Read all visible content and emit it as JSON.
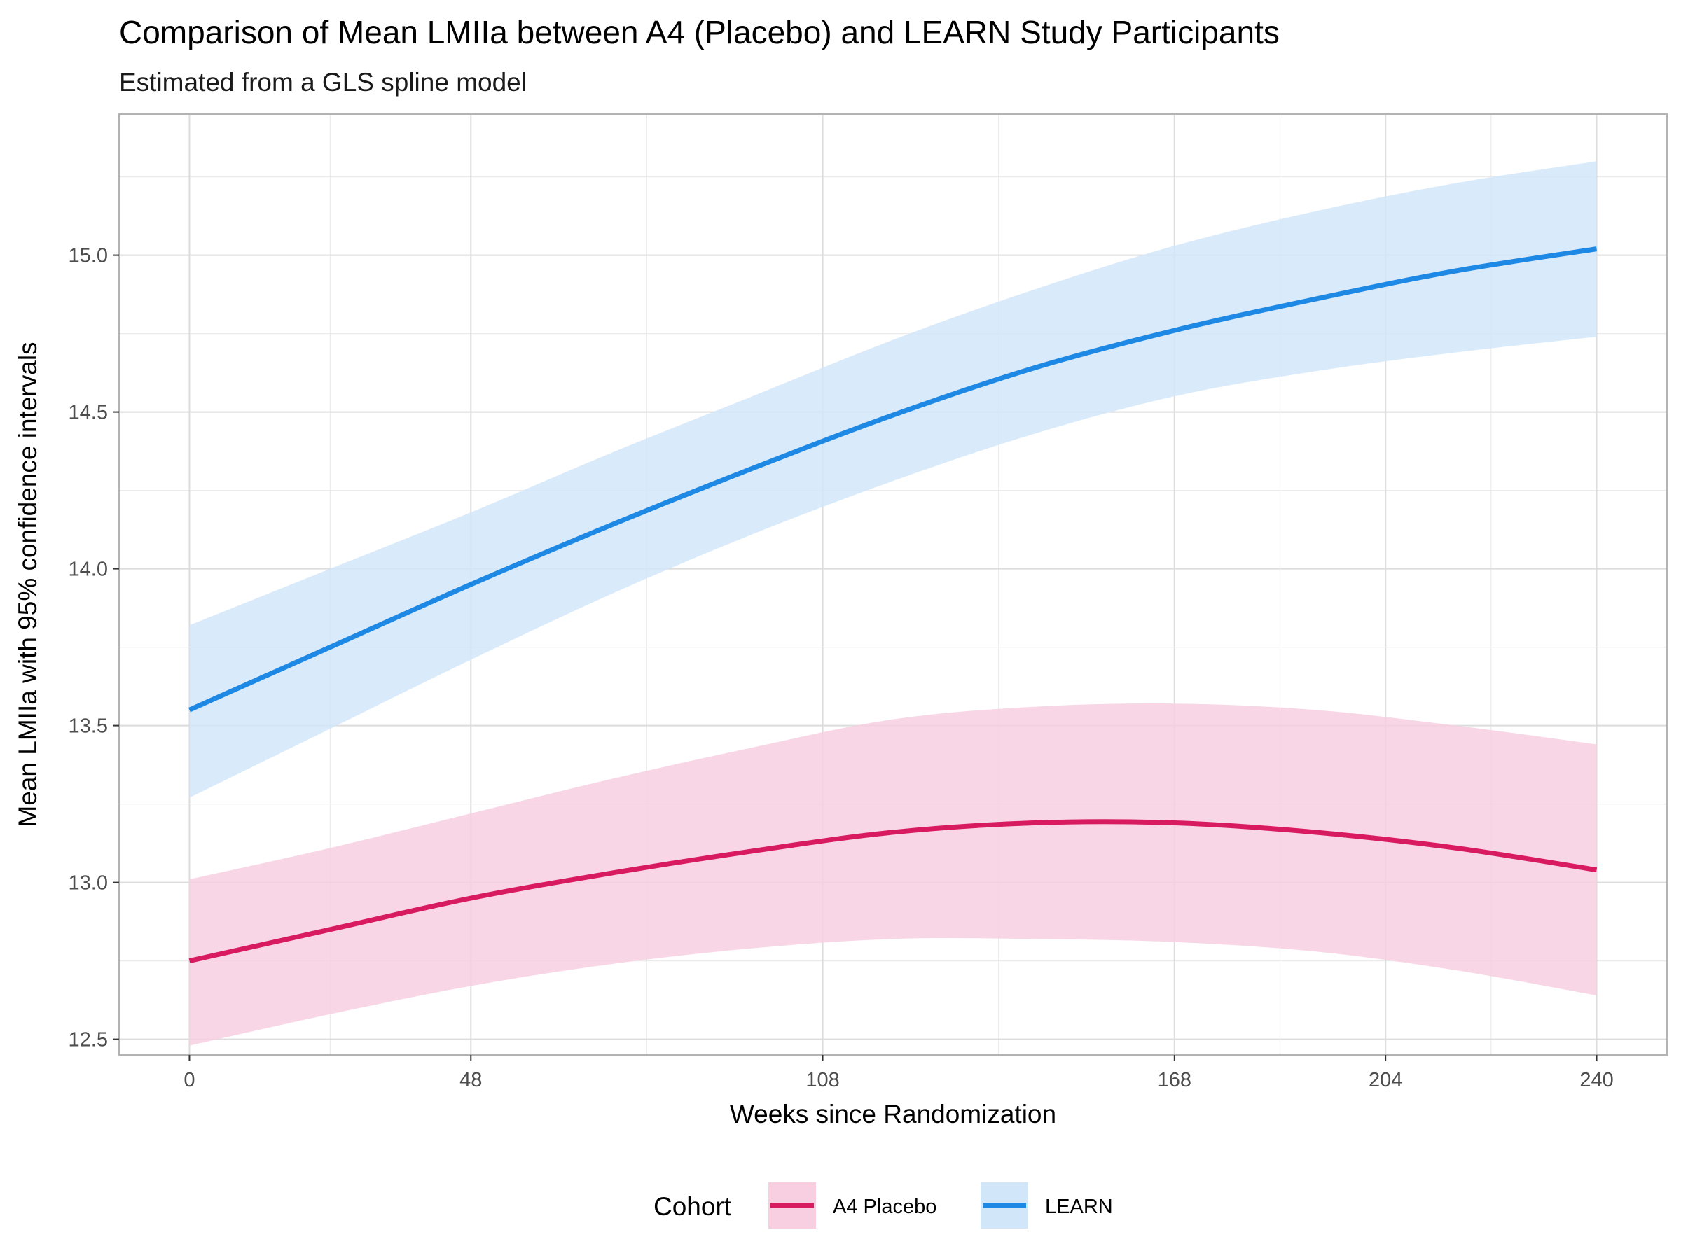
{
  "chart_data": {
    "type": "line",
    "title": "Comparison of Mean LMIIa between A4 (Placebo) and LEARN Study Participants",
    "subtitle": "Estimated from a GLS spline model",
    "xlabel": "Weeks since Randomization",
    "ylabel": "Mean LMIIa with 95% confidence intervals",
    "x_ticks": [
      0,
      48,
      108,
      168,
      204,
      240
    ],
    "y_ticks": [
      "12.5",
      "13.0",
      "13.5",
      "14.0",
      "14.5",
      "15.0"
    ],
    "xlim": [
      -12,
      252
    ],
    "ylim": [
      12.45,
      15.45
    ],
    "grid": true,
    "legend": {
      "title": "Cohort",
      "position": "bottom"
    },
    "x": [
      0,
      24,
      48,
      72,
      96,
      120,
      144,
      168,
      192,
      216,
      240
    ],
    "series": [
      {
        "name": "A4 Placebo",
        "color": "#d81b60",
        "band_color": "#f7cfe0",
        "values": [
          12.75,
          12.85,
          12.95,
          13.03,
          13.1,
          13.16,
          13.19,
          13.19,
          13.16,
          13.11,
          13.04
        ],
        "lower": [
          12.48,
          12.58,
          12.67,
          12.74,
          12.79,
          12.82,
          12.82,
          12.81,
          12.78,
          12.72,
          12.64
        ],
        "upper": [
          13.01,
          13.11,
          13.22,
          13.33,
          13.43,
          13.52,
          13.56,
          13.57,
          13.55,
          13.5,
          13.44
        ]
      },
      {
        "name": "LEARN",
        "color": "#1e88e5",
        "band_color": "#d2e6f9",
        "values": [
          13.55,
          13.75,
          13.95,
          14.14,
          14.32,
          14.49,
          14.64,
          14.76,
          14.86,
          14.95,
          15.02
        ],
        "lower": [
          13.27,
          13.49,
          13.71,
          13.92,
          14.11,
          14.28,
          14.43,
          14.55,
          14.63,
          14.69,
          14.74
        ],
        "upper": [
          13.82,
          14.0,
          14.18,
          14.37,
          14.55,
          14.73,
          14.89,
          15.03,
          15.14,
          15.23,
          15.3
        ]
      }
    ]
  }
}
